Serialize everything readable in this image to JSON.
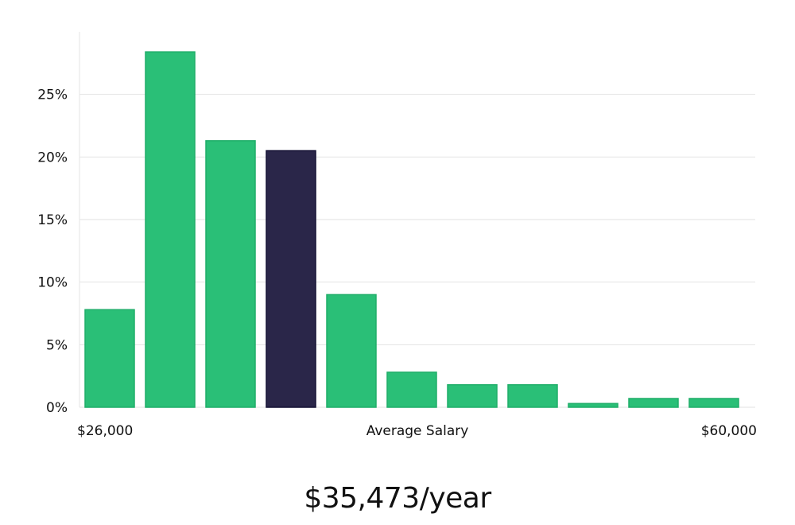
{
  "chart_data": {
    "type": "bar",
    "title": "",
    "xlabel": "Average Salary",
    "ylabel": "",
    "x_range_labels": {
      "min": "$26,000",
      "max": "$60,000"
    },
    "y_ticks": [
      "0%",
      "5%",
      "10%",
      "15%",
      "20%",
      "25%"
    ],
    "ylim": [
      0,
      30
    ],
    "grid": true,
    "bins": 11,
    "values": [
      7.8,
      28.4,
      21.3,
      20.5,
      9.0,
      2.8,
      1.8,
      1.8,
      0.3,
      0.7,
      0.7
    ],
    "highlight_index": 3,
    "colors": {
      "bar": "#2abf77",
      "bar_stroke": "#1fae69",
      "highlight": "#2a2649",
      "highlight_stroke": "#151235",
      "grid": "#e2e2e2",
      "axis": "#e6e6e6"
    }
  },
  "summary": {
    "value_text": "$35,473/year"
  }
}
